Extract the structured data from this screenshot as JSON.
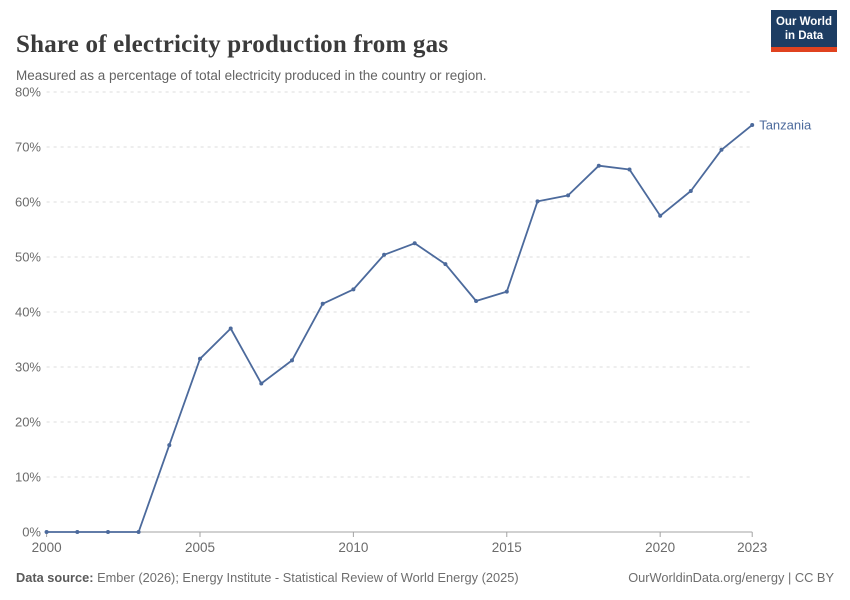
{
  "header": {
    "title": "Share of electricity production from gas",
    "subtitle": "Measured as a percentage of total electricity produced in the country or region.",
    "logo": {
      "line1": "Our World",
      "line2": "in Data",
      "bg_color": "#1d3d63",
      "accent_color": "#e0421f"
    }
  },
  "chart_data": {
    "type": "line",
    "title": "Share of electricity production from gas",
    "xlabel": "",
    "ylabel": "",
    "xlim": [
      2000,
      2023
    ],
    "ylim": [
      0,
      80
    ],
    "grid": "horizontal-dashed",
    "legend_position": "end-of-line-label",
    "x_ticks": [
      2000,
      2005,
      2010,
      2015,
      2020,
      2023
    ],
    "y_ticks": [
      0,
      10,
      20,
      30,
      40,
      50,
      60,
      70,
      80
    ],
    "y_tick_suffix": "%",
    "x": [
      2000,
      2001,
      2002,
      2003,
      2004,
      2005,
      2006,
      2007,
      2008,
      2009,
      2010,
      2011,
      2012,
      2013,
      2014,
      2015,
      2016,
      2017,
      2018,
      2019,
      2020,
      2021,
      2022,
      2023
    ],
    "series": [
      {
        "name": "Tanzania",
        "color": "#4c6a9c",
        "values": [
          0,
          0,
          0,
          0,
          15.8,
          31.5,
          37.0,
          27.0,
          31.2,
          41.5,
          44.1,
          50.4,
          52.5,
          48.7,
          42.0,
          43.7,
          60.1,
          61.2,
          66.6,
          65.9,
          57.5,
          62.0,
          69.5,
          74.0
        ]
      }
    ],
    "style": {
      "gridline_color": "#dcdcdc",
      "axis_color": "#a3a3a3",
      "tick_label_color": "#6b6b6b"
    }
  },
  "footer": {
    "source_label": "Data source:",
    "source_text": " Ember (2026); Energy Institute - Statistical Review of World Energy (2025)",
    "credit": "OurWorldinData.org/energy | CC BY"
  }
}
